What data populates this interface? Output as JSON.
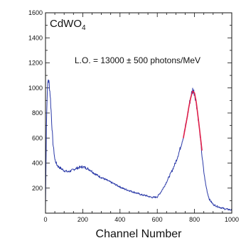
{
  "chart_data": {
    "type": "line",
    "title_main": "CdWO",
    "title_sub": "4",
    "annotation": "L.O. = 13000 ± 500 photons/MeV",
    "xlabel": "Channel Number",
    "ylabel": "",
    "xlim": [
      0,
      1000
    ],
    "ylim": [
      0,
      1600
    ],
    "x_ticks": [
      0,
      200,
      400,
      600,
      800,
      1000
    ],
    "y_ticks": [
      200,
      400,
      600,
      800,
      1000,
      1200,
      1400,
      1600
    ],
    "series": [
      {
        "color": "#2b3aa8",
        "x": [
          0,
          5,
          10,
          15,
          20,
          25,
          30,
          35,
          40,
          50,
          60,
          70,
          80,
          90,
          100,
          120,
          140,
          160,
          180,
          200,
          220,
          240,
          260,
          280,
          300,
          320,
          340,
          360,
          380,
          400,
          420,
          440,
          460,
          480,
          500,
          520,
          540,
          560,
          580,
          600,
          620,
          640,
          660,
          680,
          700,
          720,
          740,
          750,
          760,
          770,
          780,
          790,
          800,
          810,
          820,
          830,
          840,
          850,
          860,
          870,
          880,
          900,
          920,
          940,
          960,
          980,
          1000
        ],
        "y": [
          40,
          700,
          1000,
          1070,
          1030,
          950,
          820,
          680,
          560,
          430,
          390,
          370,
          360,
          350,
          340,
          330,
          340,
          355,
          365,
          370,
          360,
          345,
          320,
          300,
          285,
          270,
          255,
          240,
          225,
          210,
          195,
          185,
          175,
          165,
          155,
          145,
          140,
          130,
          125,
          130,
          170,
          220,
          280,
          340,
          410,
          500,
          610,
          680,
          760,
          850,
          930,
          985,
          960,
          880,
          760,
          620,
          460,
          330,
          230,
          160,
          110,
          70,
          55,
          45,
          35,
          30,
          25
        ]
      },
      {
        "color": "#e0204a",
        "x": [
          740,
          750,
          760,
          770,
          780,
          790,
          800,
          810,
          820,
          830,
          840
        ],
        "y": [
          600,
          680,
          760,
          850,
          925,
          975,
          960,
          880,
          760,
          630,
          500
        ]
      }
    ]
  }
}
